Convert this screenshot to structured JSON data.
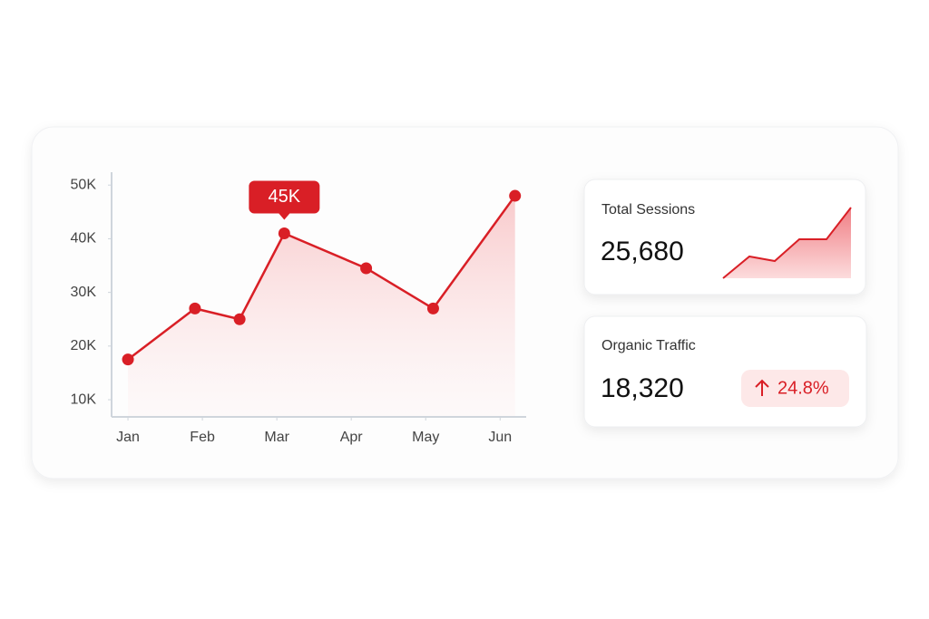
{
  "chart_data": {
    "type": "line",
    "x": [
      0,
      0.9,
      1.5,
      2.1,
      3.2,
      4.1,
      5.2
    ],
    "series": [
      {
        "color": "#d91f26",
        "values": [
          17.5,
          27,
          25,
          41,
          34.5,
          27,
          48
        ]
      }
    ],
    "xlim": [
      -0.22,
      5.35
    ],
    "xticks": [
      {
        "value": 0,
        "label": "Jan"
      },
      {
        "value": 1,
        "label": "Feb"
      },
      {
        "value": 2,
        "label": "Mar"
      },
      {
        "value": 3,
        "label": "Apr"
      },
      {
        "value": 4,
        "label": "May"
      },
      {
        "value": 5,
        "label": "Jun"
      }
    ],
    "ylim": [
      6.8,
      52.4
    ],
    "yticks": [
      {
        "value": 10,
        "label": "10K"
      },
      {
        "value": 20,
        "label": "20K"
      },
      {
        "value": 30,
        "label": "30K"
      },
      {
        "value": 40,
        "label": "40K"
      },
      {
        "value": 50,
        "label": "50K"
      }
    ],
    "annotation": "45K"
  },
  "cards": [
    {
      "label": "Total Sessions",
      "value": "25,680"
    },
    {
      "label": "Organic Traffic",
      "value": "18,320",
      "change": "24.8%"
    }
  ]
}
